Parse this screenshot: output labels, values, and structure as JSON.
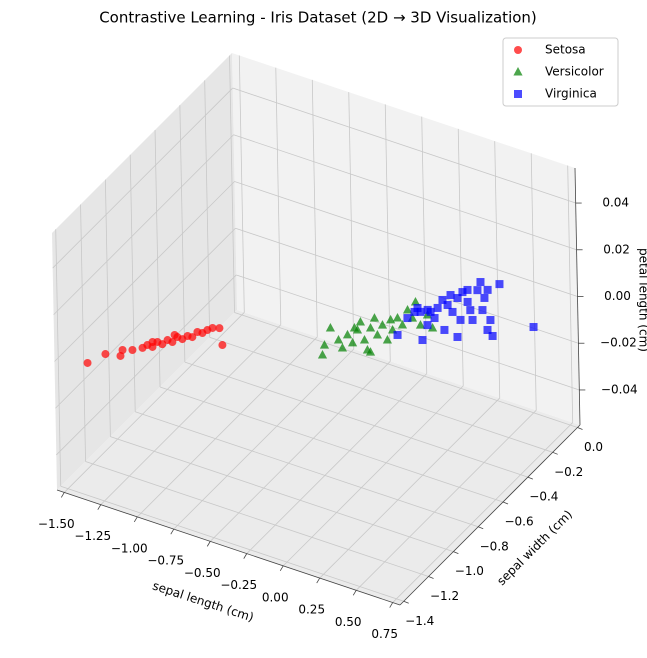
{
  "chart_data": {
    "type": "scatter3d",
    "title": "Contrastive Learning - Iris Dataset (2D → 3D Visualization)",
    "xlabel": "sepal length (cm)",
    "ylabel": "sepal width (cm)",
    "zlabel": "petal length (cm)",
    "xlim": [
      -1.55,
      0.8
    ],
    "ylim": [
      -1.43,
      0.02
    ],
    "zlim": [
      -0.055,
      0.055
    ],
    "xticks": [
      {
        "value": -1.5,
        "label": "−1.50"
      },
      {
        "value": -1.25,
        "label": "−1.25"
      },
      {
        "value": -1,
        "label": "−1.00"
      },
      {
        "value": -0.75,
        "label": "−0.75"
      },
      {
        "value": -0.5,
        "label": "−0.50"
      },
      {
        "value": -0.25,
        "label": "−0.25"
      },
      {
        "value": 0,
        "label": "0.00"
      },
      {
        "value": 0.25,
        "label": "0.25"
      },
      {
        "value": 0.5,
        "label": "0.50"
      },
      {
        "value": 0.75,
        "label": "0.75"
      }
    ],
    "yticks": [
      {
        "value": 0,
        "label": "0.0"
      },
      {
        "value": -0.2,
        "label": "−0.2"
      },
      {
        "value": -0.4,
        "label": "−0.4"
      },
      {
        "value": -0.6,
        "label": "−0.6"
      },
      {
        "value": -0.8,
        "label": "−0.8"
      },
      {
        "value": -1.0,
        "label": "−1.0"
      },
      {
        "value": -1.2,
        "label": "−1.2"
      },
      {
        "value": -1.4,
        "label": "−1.4"
      }
    ],
    "zticks": [
      {
        "value": 0.04,
        "label": "0.04"
      },
      {
        "value": 0.02,
        "label": "0.02"
      },
      {
        "value": 0,
        "label": "0.00"
      },
      {
        "value": -0.02,
        "label": "−0.02"
      },
      {
        "value": -0.04,
        "label": "−0.04"
      }
    ],
    "grid": true,
    "legend": "upper right",
    "series": [
      {
        "name": "Setosa",
        "color": "#ff0000",
        "marker": "o",
        "x": [
          -1.373,
          -1.327,
          -1.24,
          -1.26,
          -1.209,
          -1.168,
          -1.158,
          -1.122,
          -1.122,
          -1.086,
          -1.08,
          -1.045,
          -1.045,
          -1.009,
          -0.998,
          -0.968,
          -0.968,
          -0.937,
          -0.927,
          -0.911,
          -0.875,
          -0.773,
          -1.147,
          -1.07
        ],
        "y": [
          -1.372,
          -1.282,
          -1.263,
          -1.223,
          -1.203,
          -1.17,
          -1.143,
          -1.144,
          -1.104,
          -1.107,
          -1.072,
          -1.074,
          -1.034,
          -1.036,
          -1.007,
          -1.004,
          -0.963,
          -0.959,
          -0.931,
          -0.908,
          -0.895,
          -0.991,
          -1.114,
          -1.027
        ],
        "z": [
          0,
          0,
          0,
          0,
          0,
          0,
          0,
          0,
          0,
          0,
          0,
          0,
          0,
          0,
          0,
          0,
          0,
          0,
          0,
          0,
          0,
          0,
          0,
          0
        ]
      },
      {
        "name": "Versicolor",
        "color": "#008000",
        "marker": "^",
        "x": [
          -0.208,
          -0.249,
          -0.306,
          -0.203,
          -0.142,
          -0.183,
          -0.116,
          -0.157,
          -0.183,
          -0.07,
          -0.003,
          -0.1,
          -0.131,
          -0.029,
          -0.054,
          0.048,
          -0.039,
          0.023,
          -0.013,
          0.048,
          -0.003,
          0.064,
          -0.003,
          0.141,
          0.125,
          0.218,
          0.023,
          -0.183
        ],
        "y": [
          -0.849,
          -0.785,
          -0.67,
          -0.726,
          -0.766,
          -0.677,
          -0.715,
          -0.627,
          -0.573,
          -0.673,
          -0.728,
          -0.589,
          -0.521,
          -0.617,
          -0.547,
          -0.627,
          -0.499,
          -0.556,
          -0.474,
          -0.506,
          -0.405,
          -0.444,
          -0.341,
          -0.47,
          -0.395,
          -0.463,
          -0.734,
          -0.621
        ],
        "z": [
          0,
          0,
          0,
          0,
          0,
          0,
          0,
          0,
          0,
          0,
          0,
          0,
          0,
          0,
          0,
          0,
          0,
          0,
          0,
          0,
          0,
          0,
          0,
          0,
          0,
          0,
          0,
          0
        ]
      },
      {
        "name": "Virginica",
        "color": "#0000ff",
        "marker": "s",
        "x": [
          0.074,
          0.038,
          0.043,
          0.038,
          0.228,
          0.177,
          0.125,
          0.177,
          0.141,
          0.125,
          0.289,
          0.177,
          0.238,
          0.192,
          0.32,
          0.187,
          0.264,
          0.32,
          0.382,
          0.254,
          0.228,
          0.33,
          0.305,
          0.382,
          0.51,
          0.474,
          0.567,
          0.336,
          0.731,
          0.392,
          0.202,
          0.141,
          0.1,
          0.074
        ],
        "y": [
          -0.576,
          -0.454,
          -0.403,
          -0.373,
          -0.556,
          -0.456,
          -0.37,
          -0.399,
          -0.332,
          -0.274,
          -0.451,
          -0.294,
          -0.326,
          -0.232,
          -0.358,
          -0.186,
          -0.235,
          -0.279,
          -0.334,
          -0.144,
          -0.089,
          -0.177,
          -0.122,
          -0.254,
          -0.364,
          -0.298,
          -0.39,
          -0.063,
          -0.253,
          -0.467,
          -0.163,
          -0.228,
          -0.364,
          -0.39
        ],
        "z": [
          0,
          0,
          0,
          0,
          0,
          0,
          0,
          0,
          0,
          0,
          0,
          0,
          0,
          0,
          0,
          0,
          0,
          0,
          0,
          0,
          0,
          0,
          0,
          0,
          0,
          0,
          0,
          0,
          0,
          0,
          0,
          0,
          0,
          0
        ]
      }
    ]
  }
}
